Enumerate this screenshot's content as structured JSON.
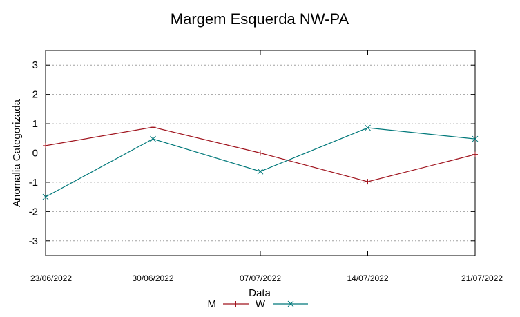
{
  "chart_data": {
    "type": "line",
    "title": "Margem Esquerda NW-PA",
    "xlabel": "Data",
    "ylabel": "Anomalia Categorizada",
    "categories": [
      "23/06/2022",
      "30/06/2022",
      "07/07/2022",
      "14/07/2022",
      "21/07/2022"
    ],
    "ylim": [
      -3.5,
      3.5
    ],
    "yticks": [
      -3,
      -2,
      -1,
      0,
      1,
      2,
      3
    ],
    "grid": true,
    "legend_position": "bottom-center",
    "series": [
      {
        "name": "M",
        "color": "#a0141e",
        "marker": "plus",
        "values": [
          0.25,
          0.88,
          0.0,
          -0.98,
          -0.05
        ]
      },
      {
        "name": "W",
        "color": "#00787a",
        "marker": "cross",
        "values": [
          -1.5,
          0.48,
          -0.63,
          0.86,
          0.48
        ]
      }
    ]
  }
}
